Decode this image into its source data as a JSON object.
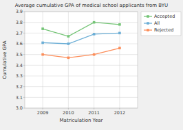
{
  "chart_data": {
    "type": "line",
    "title": "Average cumulative GPA of medical school applicants from BYU",
    "x_label": "Matriculation Year",
    "y_label": "Cumulative GPA",
    "x": [
      2009,
      2010,
      2011,
      2012
    ],
    "xlim": [
      2008.3,
      2012.7
    ],
    "xticks": [
      2009,
      2010,
      2011,
      2012
    ],
    "ylim": [
      3.0,
      3.9
    ],
    "yticks": [
      {
        "value": 3.0,
        "label": "3.0"
      },
      3.1,
      3.2,
      3.3,
      3.4,
      3.5,
      3.6,
      3.7,
      3.8,
      3.9
    ],
    "grid": true,
    "legend": "right",
    "marker": "square",
    "series": [
      {
        "name": "Accepted",
        "color": "#74c476",
        "values": [
          3.74,
          3.67,
          3.8,
          3.78
        ]
      },
      {
        "name": "All",
        "color": "#6baed6",
        "values": [
          3.61,
          3.6,
          3.69,
          3.7
        ]
      },
      {
        "name": "Rejected",
        "color": "#fc8d59",
        "values": [
          3.5,
          3.47,
          3.5,
          3.56
        ]
      }
    ]
  }
}
